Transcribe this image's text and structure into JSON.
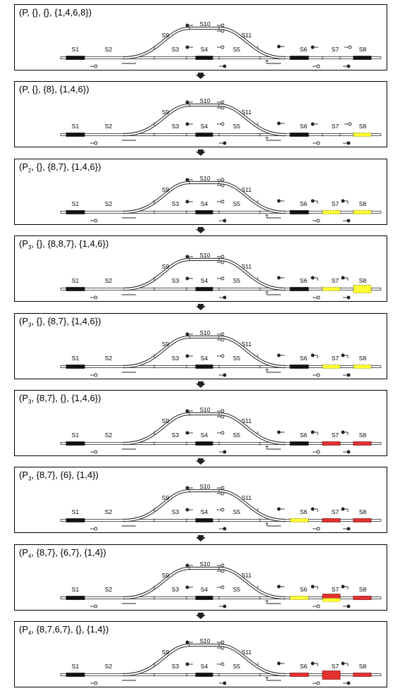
{
  "states": [
    {
      "title": "(P, {}, {}, {1,4,6,8})",
      "sub": "",
      "p": "P",
      "rest": ", {}, {}, {1,4,6,8})",
      "seg": {
        "S1": "black",
        "S4": "black",
        "S6": "black",
        "S8": "black"
      },
      "signals": "a"
    },
    {
      "title": "(P, {}, {8}, {1,4,6})",
      "sub": "",
      "p": "P",
      "rest": ", {}, {8}, {1,4,6})",
      "seg": {
        "S1": "black",
        "S4": "black",
        "S6": "black",
        "S8": "yellow"
      },
      "signals": "a"
    },
    {
      "title": "(P2, {}, {8,7}, {1,4,6})",
      "sub": "2",
      "p": "P",
      "rest": ", {}, {8,7}, {1,4,6})",
      "seg": {
        "S1": "black",
        "S4": "black",
        "S6": "black",
        "S7": "yellow",
        "S8": "yellow"
      },
      "signals": "b"
    },
    {
      "title": "(P3, {}, {8,8,7}, {1,4,6})",
      "sub": "3",
      "p": "P",
      "rest": ", {}, {8,8,7}, {1,4,6})",
      "seg": {
        "S1": "black",
        "S4": "black",
        "S6": "black",
        "S7": "yellow",
        "S8": "yellow-double"
      },
      "signals": "b"
    },
    {
      "title": "(P3, {}, {8,7}, {1,4,6})",
      "sub": "3",
      "p": "P",
      "rest": ", {}, {8,7}, {1,4,6})",
      "seg": {
        "S1": "black",
        "S4": "black",
        "S6": "black",
        "S7": "yellow",
        "S8": "yellow"
      },
      "signals": "b"
    },
    {
      "title": "(P3, {8,7}, {}, {1,4,6})",
      "sub": "3",
      "p": "P",
      "rest": ", {8,7}, {}, {1,4,6})",
      "seg": {
        "S1": "black",
        "S4": "black",
        "S6": "black",
        "S7": "red",
        "S8": "red"
      },
      "signals": "b"
    },
    {
      "title": "(P3, {8,7}, {6}, {1,4})",
      "sub": "3",
      "p": "P",
      "rest": ", {8,7}, {6}, {1,4})",
      "seg": {
        "S1": "black",
        "S4": "black",
        "S6": "yellow",
        "S7": "red",
        "S8": "red"
      },
      "signals": "b"
    },
    {
      "title": "(P4, {8,7}, {6,7}, {1,4})",
      "sub": "4",
      "p": "P",
      "rest": ", {8,7}, {6,7}, {1,4})",
      "seg": {
        "S1": "black",
        "S4": "black",
        "S6": "yellow",
        "S7": "red-yellow",
        "S8": "red"
      },
      "signals": "b"
    },
    {
      "title": "(P4, {8,7,6,7}, {}, {1,4})",
      "sub": "4",
      "p": "P",
      "rest": ", {8,7,6,7}, {}, {1,4})",
      "seg": {
        "S1": "black",
        "S4": "black",
        "S6": "red",
        "S7": "red-double",
        "S8": "red"
      },
      "signals": "b"
    }
  ],
  "labels": {
    "S1": "S1",
    "S2": "S2",
    "S3": "S3",
    "S4": "S4",
    "S5": "S5",
    "S6": "S6",
    "S7": "S7",
    "S8": "S8",
    "S9": "S9",
    "S10": "S10",
    "S11": "S11"
  },
  "colors": {
    "track": "#222222",
    "occupied": "#111111",
    "reserved": "#ffff33",
    "reserved_border": "#888800",
    "locked": "#e53030",
    "locked_border": "#7a1010",
    "arrow": "#222222"
  }
}
